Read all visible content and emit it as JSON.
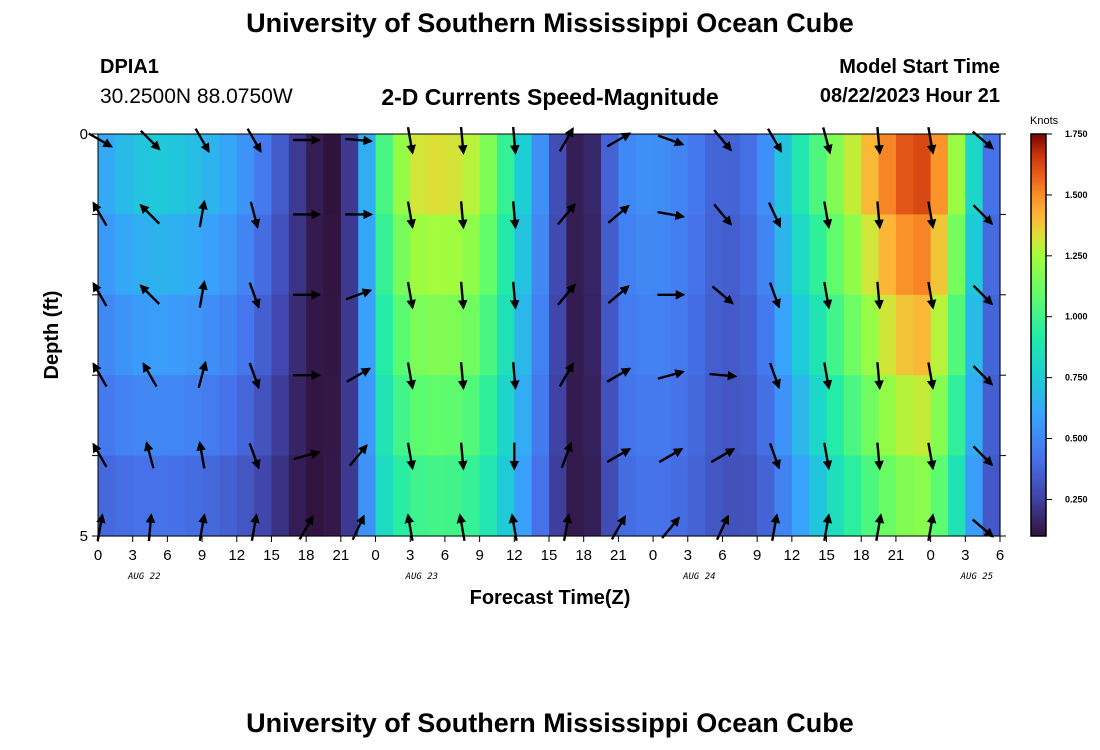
{
  "header": {
    "title": "University of Southern Mississippi Ocean Cube",
    "station": "DPIA1",
    "coordinates": "30.2500N  88.0750W",
    "subtitle": "2-D Currents Speed-Magnitude",
    "model_start_label": "Model Start Time",
    "model_start_value": "08/22/2023 Hour 21",
    "footer_title": "University of Southern Mississippi Ocean Cube"
  },
  "chart_data": {
    "type": "heatmap",
    "title": "2-D Currents Speed-Magnitude",
    "xlabel": "Forecast Time(Z)",
    "ylabel": "Depth (ft)",
    "x_tick_labels": [
      "0",
      "3",
      "6",
      "9",
      "12",
      "15",
      "18",
      "21",
      "0",
      "3",
      "6",
      "9",
      "12",
      "15",
      "18",
      "21",
      "0",
      "3",
      "6",
      "9",
      "12",
      "15",
      "18",
      "21",
      "0",
      "3",
      "6"
    ],
    "date_labels": [
      {
        "label": "AUG 22",
        "hour": 4
      },
      {
        "label": "AUG 23",
        "hour": 28
      },
      {
        "label": "AUG 24",
        "hour": 52
      },
      {
        "label": "AUG 25",
        "hour": 76
      }
    ],
    "y_tick_labels": [
      "0",
      "5"
    ],
    "ylim": [
      0,
      5
    ],
    "xlim_hours": [
      0,
      78
    ],
    "colorbar": {
      "unit": "Knots",
      "min": 0.1,
      "max": 1.75,
      "tick_labels": [
        "0.250",
        "0.500",
        "0.750",
        "1.000",
        "1.250",
        "1.500",
        "1.750"
      ],
      "tick_values": [
        0.25,
        0.5,
        0.75,
        1.0,
        1.25,
        1.5,
        1.75
      ]
    },
    "speed_profile": {
      "hours": [
        0,
        3,
        6,
        9,
        12,
        15,
        16.5,
        18,
        19.5,
        21,
        22.5,
        24,
        27,
        30,
        33,
        36,
        39,
        40.5,
        42,
        43.5,
        45,
        48,
        51,
        54,
        57,
        60,
        63,
        66,
        69,
        71,
        72,
        73.5,
        75,
        76.5,
        78
      ],
      "surface": [
        0.62,
        0.75,
        0.78,
        0.72,
        0.62,
        0.42,
        0.3,
        0.18,
        0.1,
        0.1,
        0.35,
        0.95,
        1.35,
        1.38,
        1.3,
        0.9,
        0.42,
        0.18,
        0.1,
        0.25,
        0.5,
        0.55,
        0.48,
        0.35,
        0.45,
        0.85,
        1.15,
        1.4,
        1.62,
        1.7,
        1.62,
        1.45,
        1.1,
        0.55,
        0.3
      ],
      "bottom": [
        0.35,
        0.38,
        0.38,
        0.36,
        0.32,
        0.22,
        0.15,
        0.1,
        0.1,
        0.15,
        0.3,
        0.75,
        0.95,
        0.98,
        0.92,
        0.65,
        0.32,
        0.15,
        0.1,
        0.18,
        0.38,
        0.42,
        0.38,
        0.3,
        0.3,
        0.5,
        0.75,
        0.95,
        1.1,
        1.15,
        1.1,
        0.95,
        0.7,
        0.4,
        0.25
      ]
    },
    "arrow_times": [
      0,
      4.5,
      9,
      13.5,
      18,
      22.5,
      27,
      31.5,
      36,
      40.5,
      45,
      49.5,
      54,
      58.5,
      63,
      67.5,
      72,
      76.5
    ],
    "arrow_depths": [
      0,
      1,
      2,
      3,
      4,
      5
    ],
    "arrow_directions_deg": [
      [
        120,
        330,
        330,
        330,
        330,
        10
      ],
      [
        135,
        315,
        315,
        330,
        345,
        5
      ],
      [
        150,
        10,
        10,
        15,
        350,
        10
      ],
      [
        150,
        165,
        160,
        160,
        160,
        10
      ],
      [
        90,
        90,
        90,
        90,
        75,
        30
      ],
      [
        95,
        90,
        70,
        60,
        40,
        25
      ],
      [
        170,
        170,
        170,
        170,
        170,
        350
      ],
      [
        175,
        175,
        175,
        175,
        175,
        350
      ],
      [
        175,
        175,
        175,
        175,
        180,
        350
      ],
      [
        30,
        40,
        40,
        30,
        20,
        10
      ],
      [
        60,
        50,
        50,
        60,
        60,
        30
      ],
      [
        110,
        100,
        90,
        75,
        60,
        40
      ],
      [
        140,
        140,
        130,
        95,
        60,
        25
      ],
      [
        150,
        155,
        160,
        160,
        160,
        10
      ],
      [
        165,
        170,
        170,
        170,
        170,
        10
      ],
      [
        175,
        175,
        175,
        175,
        175,
        10
      ],
      [
        170,
        170,
        170,
        170,
        170,
        10
      ],
      [
        130,
        135,
        135,
        135,
        135,
        130
      ]
    ]
  }
}
